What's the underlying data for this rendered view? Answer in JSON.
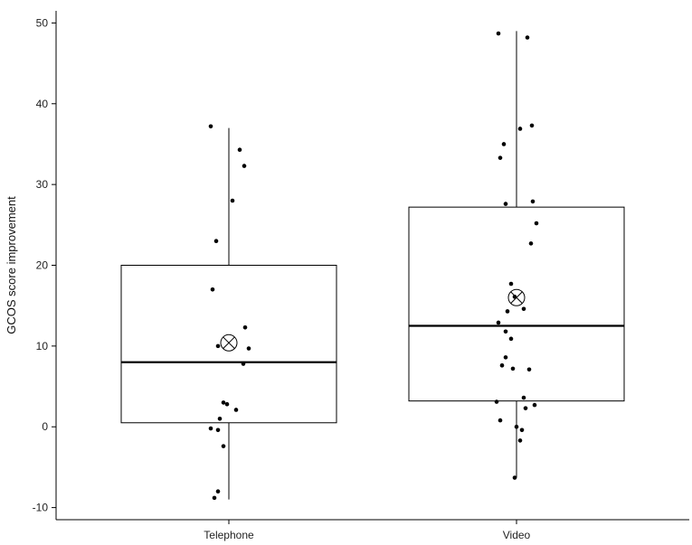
{
  "chart_data": {
    "type": "box",
    "title": "",
    "xlabel": "",
    "ylabel": "GCOS score improvement",
    "ylim": [
      -11.5,
      51.5
    ],
    "yticks": [
      -10,
      0,
      10,
      20,
      30,
      40,
      50
    ],
    "ytick_labels": [
      "-10",
      "0",
      "10",
      "20",
      "30",
      "40",
      "50"
    ],
    "grid": false,
    "legend": "none",
    "categories": [
      "Telephone",
      "Video"
    ],
    "groups": [
      {
        "name": "Telephone",
        "whisker_low": -9.0,
        "q1": 0.5,
        "median": 8.0,
        "q3": 20.0,
        "whisker_high": 37.0,
        "mean": 10.4,
        "points": [
          37.2,
          34.3,
          32.3,
          28.0,
          23.0,
          17.0,
          12.3,
          10.0,
          9.7,
          7.8,
          3.0,
          2.8,
          2.1,
          1.0,
          -0.2,
          -0.4,
          -2.4,
          -8.0,
          -8.8
        ]
      },
      {
        "name": "Video",
        "whisker_low": -6.3,
        "q1": 3.2,
        "median": 12.5,
        "q3": 27.2,
        "whisker_high": 49.0,
        "mean": 16.0,
        "points": [
          48.7,
          48.2,
          37.3,
          36.9,
          35.0,
          33.3,
          27.9,
          27.6,
          25.2,
          22.7,
          17.7,
          16.1,
          14.6,
          14.3,
          12.9,
          11.8,
          10.9,
          8.6,
          7.6,
          7.2,
          7.1,
          3.6,
          3.1,
          2.7,
          2.3,
          0.8,
          0.0,
          -0.4,
          -1.7,
          -6.3
        ]
      }
    ]
  },
  "colors": {
    "box_stroke": "#000000",
    "median": "#000000",
    "points": "#000000",
    "background": "#ffffff"
  }
}
